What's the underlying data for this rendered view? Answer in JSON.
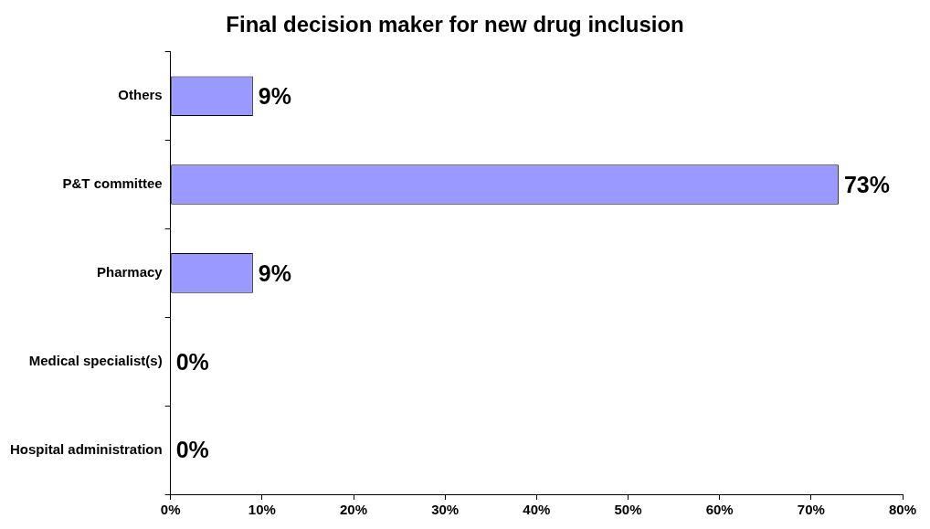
{
  "chart_data": {
    "type": "bar",
    "orientation": "horizontal",
    "title": "Final decision maker for new drug inclusion",
    "categories": [
      "Others",
      "P&T committee",
      "Pharmacy",
      "Medical specialist(s)",
      "Hospital administration"
    ],
    "values": [
      9,
      73,
      9,
      0,
      0
    ],
    "value_labels": [
      "9%",
      "73%",
      "9%",
      "0%",
      "0%"
    ],
    "color": "#9999ff",
    "xlim": [
      0,
      80
    ],
    "xticks": [
      {
        "value": 0,
        "label": "0%"
      },
      {
        "value": 10,
        "label": "10%"
      },
      {
        "value": 20,
        "label": "20%"
      },
      {
        "value": 30,
        "label": "30%"
      },
      {
        "value": 40,
        "label": "40%"
      },
      {
        "value": 50,
        "label": "50%"
      },
      {
        "value": 60,
        "label": "60%"
      },
      {
        "value": 70,
        "label": "70%"
      },
      {
        "value": 80,
        "label": "80%"
      }
    ],
    "grid": false,
    "legend": false
  }
}
